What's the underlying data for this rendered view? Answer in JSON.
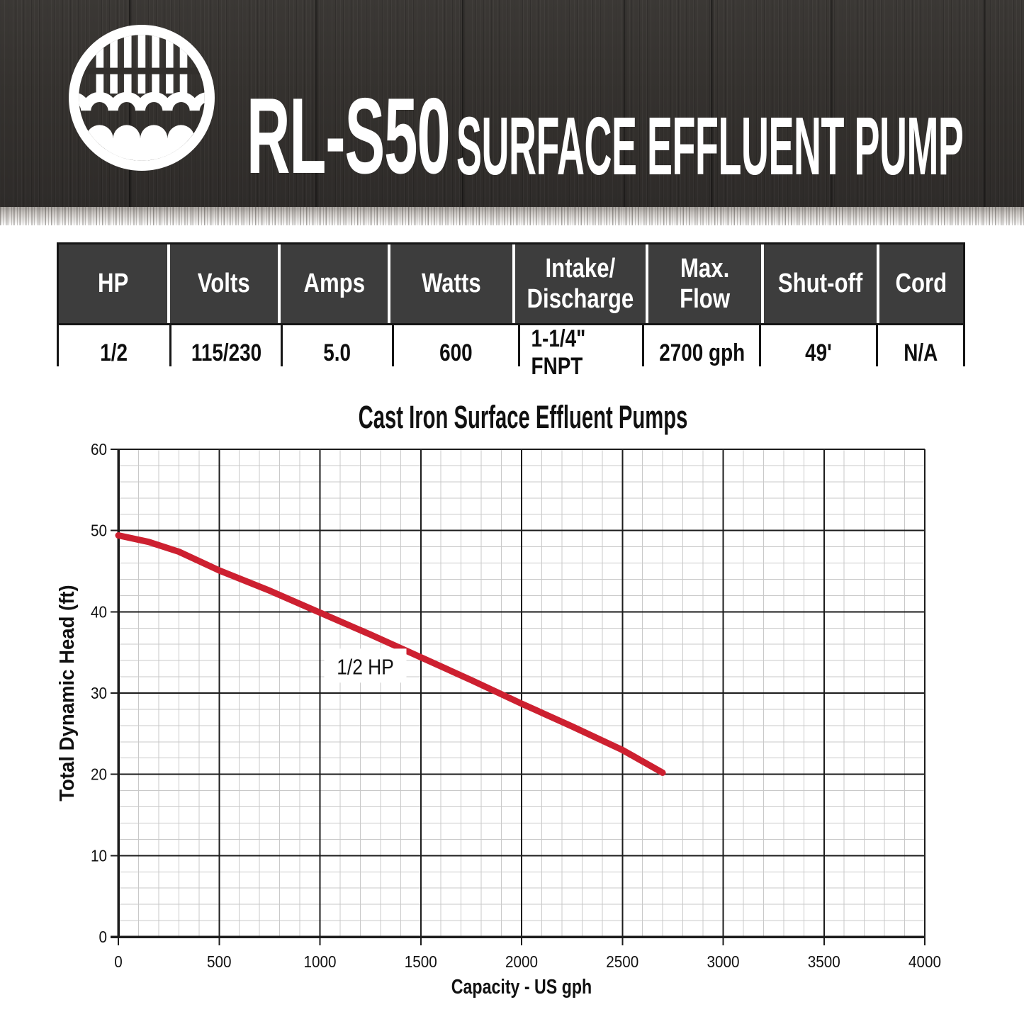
{
  "header": {
    "model": "RL-S50",
    "subtitle": "SURFACE EFFLUENT PUMP",
    "logo": "water-grate-waves-logo"
  },
  "spec_table": {
    "columns": [
      {
        "header": "HP",
        "value": "1/2"
      },
      {
        "header": "Volts",
        "value": "115/230"
      },
      {
        "header": "Amps",
        "value": "5.0"
      },
      {
        "header": "Watts",
        "value": "600"
      },
      {
        "header": "Intake/ Discharge",
        "value": "1-1/4\" FNPT"
      },
      {
        "header": "Max. Flow",
        "value": "2700 gph"
      },
      {
        "header": "Shut-off",
        "value": "49'"
      },
      {
        "header": "Cord",
        "value": "N/A"
      }
    ]
  },
  "chart_data": {
    "type": "line",
    "title": "Cast Iron Surface Effluent Pumps",
    "xlabel": "Capacity - US gph",
    "ylabel": "Total Dynamic Head (ft)",
    "xlim": [
      0,
      4000
    ],
    "ylim": [
      0,
      60
    ],
    "x_major_step": 500,
    "x_minor_step": 100,
    "y_major_step": 10,
    "y_minor_step": 2,
    "x_tick_labels": [
      "0",
      "500",
      "1000",
      "1500",
      "2000",
      "2500",
      "3000",
      "3500",
      "4000"
    ],
    "y_tick_labels": [
      "0",
      "10",
      "20",
      "30",
      "40",
      "50",
      "60"
    ],
    "grid": true,
    "legend_position": "inline-label",
    "series": [
      {
        "name": "1/2 HP",
        "color": "#cd2030",
        "label_pos": {
          "x": 1225,
          "y": 33.2
        },
        "points": [
          [
            0,
            49.4
          ],
          [
            150,
            48.6
          ],
          [
            300,
            47.4
          ],
          [
            500,
            45.1
          ],
          [
            750,
            42.6
          ],
          [
            1000,
            39.9
          ],
          [
            1250,
            37.2
          ],
          [
            1500,
            34.4
          ],
          [
            1750,
            31.6
          ],
          [
            2000,
            28.7
          ],
          [
            2250,
            25.9
          ],
          [
            2500,
            23.0
          ],
          [
            2700,
            20.2
          ]
        ]
      }
    ]
  },
  "colors": {
    "accent_red": "#cd2030",
    "table_header_bg": "#3d3d3d",
    "wood_dark": "#34312e",
    "grid_minor": "#c9c9c9",
    "grid_major": "#1c1c1c",
    "text": "#111111"
  }
}
